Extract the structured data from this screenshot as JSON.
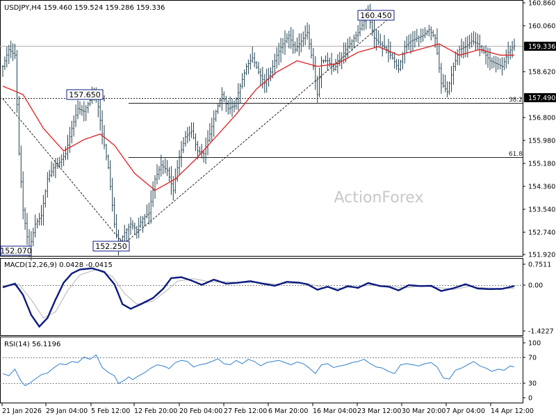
{
  "watermark": "ActionForex",
  "colors": {
    "price": "#1f3f4f",
    "ma": "#e01e1e",
    "macd_main": "#0b1a80",
    "macd_signal": "#b4b4b4",
    "rsi": "#2f7fd0",
    "label_border": "#0b1a80",
    "price_box_bg": "#000000",
    "grid_dash": "#808080"
  },
  "price_panel": {
    "header": "USDJPY,H4  159.460 159.524 159.286 159.336",
    "yaxis_ticks": [
      "160.860",
      "160.060",
      "159.336",
      "158.620",
      "157.490",
      "156.800",
      "155.980",
      "155.180",
      "154.360",
      "153.540",
      "152.740",
      "151.920"
    ],
    "current_price": "159.336",
    "level_price": "157.490",
    "fib_levels": [
      {
        "label": "38.2",
        "value": 157.2
      },
      {
        "label": "61.8",
        "value": 155.4
      }
    ],
    "swing_labels": [
      {
        "text": "160.450",
        "value": 160.45,
        "index": 180
      },
      {
        "text": "157.650",
        "value": 157.65,
        "index": 46
      },
      {
        "text": "152.250",
        "value": 152.25,
        "index": 57
      },
      {
        "text": "152.070",
        "value": 152.07,
        "index": 0
      }
    ]
  },
  "macd_panel": {
    "label": "MACD(12,26,9) 0.0428 -0.0415",
    "ticks": [
      "0.7511",
      "0.00",
      "-1.4227"
    ]
  },
  "rsi_panel": {
    "label": "RSI(14) 56.1196",
    "ticks": [
      "100",
      "70",
      "30",
      "0"
    ]
  },
  "xaxis_labels": [
    "21 Jan 2026",
    "29 Jan 04:00",
    "5 Feb 12:00",
    "12 Feb 20:00",
    "20 Feb 04:00",
    "27 Feb 12:00",
    "6 Mar 20:00",
    "16 Mar 04:00",
    "23 Mar 12:00",
    "30 Mar 20:00",
    "7 Apr 04:00",
    "14 Apr 12:00"
  ],
  "chart_data": {
    "type": "line",
    "title": "USDJPY,H4",
    "price_ylim": [
      151.92,
      160.86
    ],
    "macd_ylim": [
      -1.4227,
      0.7511
    ],
    "rsi_ylim": [
      0,
      100
    ],
    "price_keypoints": [
      [
        0,
        158.6
      ],
      [
        3,
        159.2
      ],
      [
        6,
        159.0
      ],
      [
        8,
        155.5
      ],
      [
        10,
        153.5
      ],
      [
        13,
        152.07
      ],
      [
        16,
        153.0
      ],
      [
        19,
        153.3
      ],
      [
        22,
        154.6
      ],
      [
        25,
        155.0
      ],
      [
        28,
        155.2
      ],
      [
        31,
        155.5
      ],
      [
        34,
        156.4
      ],
      [
        37,
        157.1
      ],
      [
        40,
        157.0
      ],
      [
        43,
        157.4
      ],
      [
        46,
        157.65
      ],
      [
        49,
        156.2
      ],
      [
        52,
        155.0
      ],
      [
        55,
        153.0
      ],
      [
        57,
        152.25
      ],
      [
        60,
        152.7
      ],
      [
        63,
        153.0
      ],
      [
        66,
        152.8
      ],
      [
        69,
        153.2
      ],
      [
        72,
        153.4
      ],
      [
        75,
        154.6
      ],
      [
        78,
        155.1
      ],
      [
        81,
        154.9
      ],
      [
        84,
        154.2
      ],
      [
        87,
        155.4
      ],
      [
        90,
        156.1
      ],
      [
        93,
        156.3
      ],
      [
        96,
        155.6
      ],
      [
        99,
        155.5
      ],
      [
        102,
        156.2
      ],
      [
        105,
        157.0
      ],
      [
        108,
        157.6
      ],
      [
        111,
        157.1
      ],
      [
        114,
        157.2
      ],
      [
        117,
        157.9
      ],
      [
        120,
        158.6
      ],
      [
        123,
        158.9
      ],
      [
        126,
        158.4
      ],
      [
        129,
        158.0
      ],
      [
        132,
        158.4
      ],
      [
        135,
        159.0
      ],
      [
        138,
        159.4
      ],
      [
        141,
        159.7
      ],
      [
        144,
        159.2
      ],
      [
        147,
        159.5
      ],
      [
        150,
        159.8
      ],
      [
        153,
        158.6
      ],
      [
        155,
        157.6
      ],
      [
        157,
        158.8
      ],
      [
        160,
        158.8
      ],
      [
        163,
        158.5
      ],
      [
        166,
        158.8
      ],
      [
        169,
        159.2
      ],
      [
        172,
        159.5
      ],
      [
        175,
        159.8
      ],
      [
        178,
        160.2
      ],
      [
        180,
        160.45
      ],
      [
        183,
        159.6
      ],
      [
        186,
        159.4
      ],
      [
        189,
        159.2
      ],
      [
        192,
        158.9
      ],
      [
        195,
        158.5
      ],
      [
        198,
        159.3
      ],
      [
        201,
        159.5
      ],
      [
        204,
        159.6
      ],
      [
        207,
        159.7
      ],
      [
        210,
        159.9
      ],
      [
        213,
        159.6
      ],
      [
        216,
        158.0
      ],
      [
        219,
        157.7
      ],
      [
        222,
        158.6
      ],
      [
        225,
        159.2
      ],
      [
        228,
        159.3
      ],
      [
        231,
        159.5
      ],
      [
        234,
        159.4
      ],
      [
        237,
        159.1
      ],
      [
        240,
        158.8
      ],
      [
        243,
        158.7
      ],
      [
        246,
        158.6
      ],
      [
        249,
        159.1
      ],
      [
        252,
        159.336
      ]
    ],
    "ma_keypoints": [
      [
        0,
        157.9
      ],
      [
        10,
        157.6
      ],
      [
        20,
        156.4
      ],
      [
        30,
        155.6
      ],
      [
        40,
        156.0
      ],
      [
        48,
        156.2
      ],
      [
        55,
        155.8
      ],
      [
        65,
        154.8
      ],
      [
        75,
        154.2
      ],
      [
        85,
        154.6
      ],
      [
        95,
        155.3
      ],
      [
        105,
        156.1
      ],
      [
        115,
        156.9
      ],
      [
        125,
        157.8
      ],
      [
        135,
        158.4
      ],
      [
        145,
        158.8
      ],
      [
        155,
        158.6
      ],
      [
        165,
        158.7
      ],
      [
        175,
        159.1
      ],
      [
        185,
        159.3
      ],
      [
        195,
        159.0
      ],
      [
        205,
        159.2
      ],
      [
        215,
        159.4
      ],
      [
        225,
        159.0
      ],
      [
        235,
        159.2
      ],
      [
        245,
        159.0
      ],
      [
        252,
        159.0
      ]
    ],
    "macd_keypoints": [
      [
        0,
        0.0
      ],
      [
        6,
        0.12
      ],
      [
        10,
        -0.25
      ],
      [
        14,
        -0.9
      ],
      [
        18,
        -1.28
      ],
      [
        22,
        -1.0
      ],
      [
        26,
        -0.4
      ],
      [
        30,
        0.15
      ],
      [
        34,
        0.45
      ],
      [
        38,
        0.58
      ],
      [
        44,
        0.62
      ],
      [
        50,
        0.5
      ],
      [
        55,
        0.1
      ],
      [
        59,
        -0.55
      ],
      [
        63,
        -0.7
      ],
      [
        68,
        -0.55
      ],
      [
        74,
        -0.35
      ],
      [
        79,
        -0.05
      ],
      [
        83,
        0.3
      ],
      [
        88,
        0.33
      ],
      [
        93,
        0.22
      ],
      [
        98,
        0.08
      ],
      [
        104,
        0.25
      ],
      [
        110,
        0.12
      ],
      [
        116,
        0.15
      ],
      [
        122,
        0.2
      ],
      [
        128,
        0.12
      ],
      [
        134,
        0.05
      ],
      [
        140,
        0.18
      ],
      [
        146,
        0.15
      ],
      [
        150,
        0.1
      ],
      [
        155,
        -0.08
      ],
      [
        160,
        0.02
      ],
      [
        165,
        -0.1
      ],
      [
        170,
        0.04
      ],
      [
        175,
        -0.02
      ],
      [
        180,
        0.14
      ],
      [
        186,
        0.04
      ],
      [
        190,
        0.02
      ],
      [
        195,
        -0.1
      ],
      [
        200,
        0.07
      ],
      [
        206,
        0.04
      ],
      [
        211,
        0.05
      ],
      [
        216,
        -0.12
      ],
      [
        222,
        -0.03
      ],
      [
        228,
        0.1
      ],
      [
        234,
        -0.04
      ],
      [
        240,
        -0.06
      ],
      [
        246,
        -0.05
      ],
      [
        252,
        0.04
      ]
    ],
    "macd_signal_keypoints": [
      [
        0,
        0.05
      ],
      [
        8,
        0.1
      ],
      [
        14,
        -0.4
      ],
      [
        20,
        -1.0
      ],
      [
        26,
        -0.8
      ],
      [
        32,
        -0.1
      ],
      [
        38,
        0.4
      ],
      [
        46,
        0.58
      ],
      [
        54,
        0.35
      ],
      [
        60,
        -0.2
      ],
      [
        66,
        -0.55
      ],
      [
        74,
        -0.45
      ],
      [
        80,
        -0.15
      ],
      [
        86,
        0.2
      ],
      [
        94,
        0.28
      ],
      [
        102,
        0.18
      ],
      [
        110,
        0.18
      ],
      [
        118,
        0.15
      ],
      [
        126,
        0.16
      ],
      [
        134,
        0.1
      ],
      [
        142,
        0.13
      ],
      [
        150,
        0.12
      ],
      [
        158,
        0.0
      ],
      [
        166,
        -0.03
      ],
      [
        174,
        0.01
      ],
      [
        182,
        0.08
      ],
      [
        190,
        0.04
      ],
      [
        198,
        -0.02
      ],
      [
        206,
        0.04
      ],
      [
        214,
        0.0
      ],
      [
        222,
        -0.07
      ],
      [
        230,
        0.03
      ],
      [
        238,
        -0.02
      ],
      [
        246,
        -0.04
      ],
      [
        252,
        -0.04
      ]
    ],
    "rsi_keypoints": [
      [
        0,
        44
      ],
      [
        3,
        40
      ],
      [
        6,
        52
      ],
      [
        9,
        30
      ],
      [
        11,
        22
      ],
      [
        13,
        26
      ],
      [
        16,
        34
      ],
      [
        19,
        42
      ],
      [
        22,
        45
      ],
      [
        25,
        54
      ],
      [
        28,
        62
      ],
      [
        31,
        60
      ],
      [
        34,
        66
      ],
      [
        37,
        64
      ],
      [
        40,
        74
      ],
      [
        43,
        70
      ],
      [
        46,
        78
      ],
      [
        49,
        55
      ],
      [
        52,
        46
      ],
      [
        55,
        40
      ],
      [
        57,
        26
      ],
      [
        60,
        32
      ],
      [
        62,
        38
      ],
      [
        64,
        33
      ],
      [
        67,
        40
      ],
      [
        70,
        46
      ],
      [
        73,
        54
      ],
      [
        76,
        60
      ],
      [
        79,
        58
      ],
      [
        82,
        53
      ],
      [
        85,
        64
      ],
      [
        88,
        68
      ],
      [
        91,
        66
      ],
      [
        94,
        56
      ],
      [
        97,
        60
      ],
      [
        100,
        62
      ],
      [
        103,
        66
      ],
      [
        106,
        71
      ],
      [
        109,
        62
      ],
      [
        112,
        60
      ],
      [
        115,
        68
      ],
      [
        118,
        62
      ],
      [
        121,
        70
      ],
      [
        124,
        66
      ],
      [
        127,
        58
      ],
      [
        130,
        64
      ],
      [
        133,
        66
      ],
      [
        136,
        68
      ],
      [
        139,
        64
      ],
      [
        142,
        60
      ],
      [
        145,
        65
      ],
      [
        148,
        62
      ],
      [
        151,
        54
      ],
      [
        154,
        44
      ],
      [
        157,
        60
      ],
      [
        160,
        62
      ],
      [
        163,
        55
      ],
      [
        166,
        58
      ],
      [
        169,
        60
      ],
      [
        172,
        64
      ],
      [
        175,
        66
      ],
      [
        178,
        70
      ],
      [
        181,
        62
      ],
      [
        184,
        56
      ],
      [
        187,
        54
      ],
      [
        190,
        48
      ],
      [
        193,
        44
      ],
      [
        196,
        60
      ],
      [
        199,
        62
      ],
      [
        202,
        60
      ],
      [
        205,
        58
      ],
      [
        208,
        62
      ],
      [
        211,
        64
      ],
      [
        214,
        56
      ],
      [
        217,
        36
      ],
      [
        220,
        34
      ],
      [
        223,
        50
      ],
      [
        226,
        54
      ],
      [
        229,
        60
      ],
      [
        232,
        66
      ],
      [
        235,
        58
      ],
      [
        238,
        54
      ],
      [
        241,
        48
      ],
      [
        244,
        52
      ],
      [
        247,
        50
      ],
      [
        250,
        58
      ],
      [
        252,
        56
      ]
    ]
  }
}
